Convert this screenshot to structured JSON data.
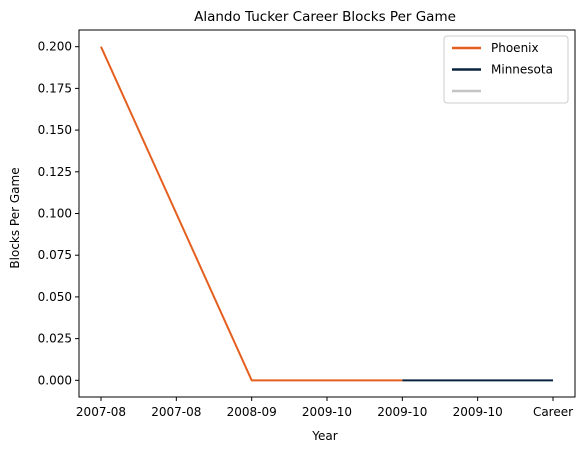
{
  "chart_data": {
    "type": "line",
    "title": "Alando Tucker Career Blocks Per Game",
    "xlabel": "Year",
    "ylabel": "Blocks Per Game",
    "categories": [
      "2007-08",
      "2007-08",
      "2008-09",
      "2009-10",
      "2009-10",
      "2009-10",
      "Career"
    ],
    "ylim": [
      -0.01,
      0.21
    ],
    "yticks": [
      0.0,
      0.025,
      0.05,
      0.075,
      0.1,
      0.125,
      0.15,
      0.175,
      0.2
    ],
    "ytick_labels": [
      "0.000",
      "0.025",
      "0.050",
      "0.075",
      "0.100",
      "0.125",
      "0.150",
      "0.175",
      "0.200"
    ],
    "grid": false,
    "legend_position": "top-right",
    "series": [
      {
        "name": "Phoenix",
        "color": "#E56020",
        "points": [
          [
            0,
            0.2
          ],
          [
            2,
            0.0
          ],
          [
            4,
            0.0
          ]
        ]
      },
      {
        "name": "Minnesota",
        "color": "#0C2340",
        "points": [
          [
            4,
            0.0
          ],
          [
            6,
            0.0
          ]
        ]
      },
      {
        "name": "",
        "color": "#C4C4C4",
        "points": []
      }
    ]
  }
}
